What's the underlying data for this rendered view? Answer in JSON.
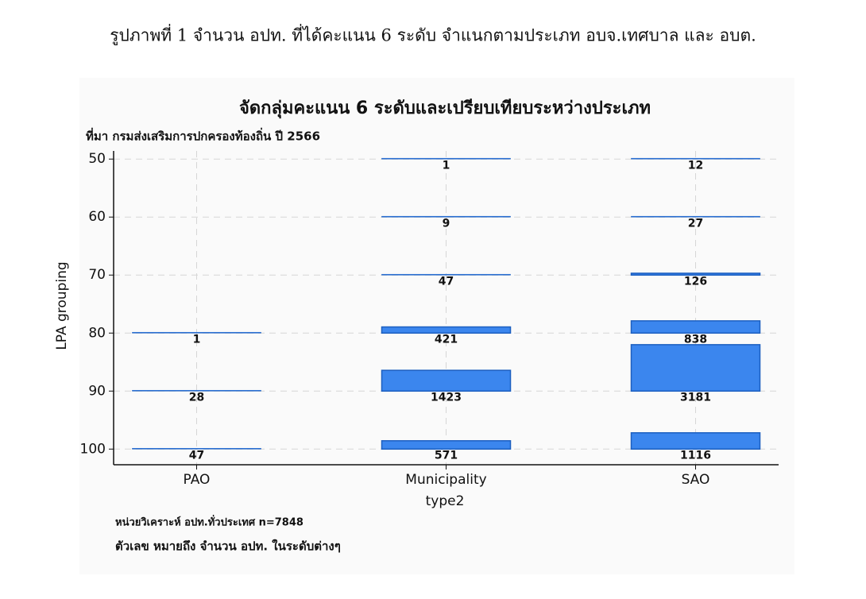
{
  "caption": "รูปภาพที่ 1 จำนวน อปท. ที่ได้คะแนน 6 ระดับ จำแนกตามประเภท อบจ.เทศบาล และ อบต.",
  "chart_data": {
    "type": "bar",
    "title": "จัดกลุ่มคะแนน 6 ระดับและเปรียบเทียบระหว่างประเภท",
    "subtitle": "ที่มา กรมส่งเสริมการปกครองท้องถิ่น ปี 2566",
    "y_label": "LPA grouping",
    "x_label": "type2",
    "notes": [
      "หน่วยวิเคราะห์ อปท.ทั่วประเทศ n=7848",
      "ตัวเลข หมายถึง จำนวน อปท. ในระดับต่างๆ"
    ],
    "categories": [
      "PAO",
      "Municipality",
      "SAO"
    ],
    "values": [
      [
        null,
        null,
        null,
        1,
        28,
        47
      ],
      [
        1,
        9,
        47,
        421,
        1423,
        571
      ],
      [
        12,
        27,
        126,
        838,
        3181,
        1116
      ]
    ],
    "ylim": [
      48.6,
      102.7
    ],
    "y_inverted": true,
    "yticks": [
      50,
      60,
      70,
      80,
      90,
      100
    ],
    "grid": true,
    "color": "#3b86ee",
    "edge_color": "#1c5fc0"
  }
}
